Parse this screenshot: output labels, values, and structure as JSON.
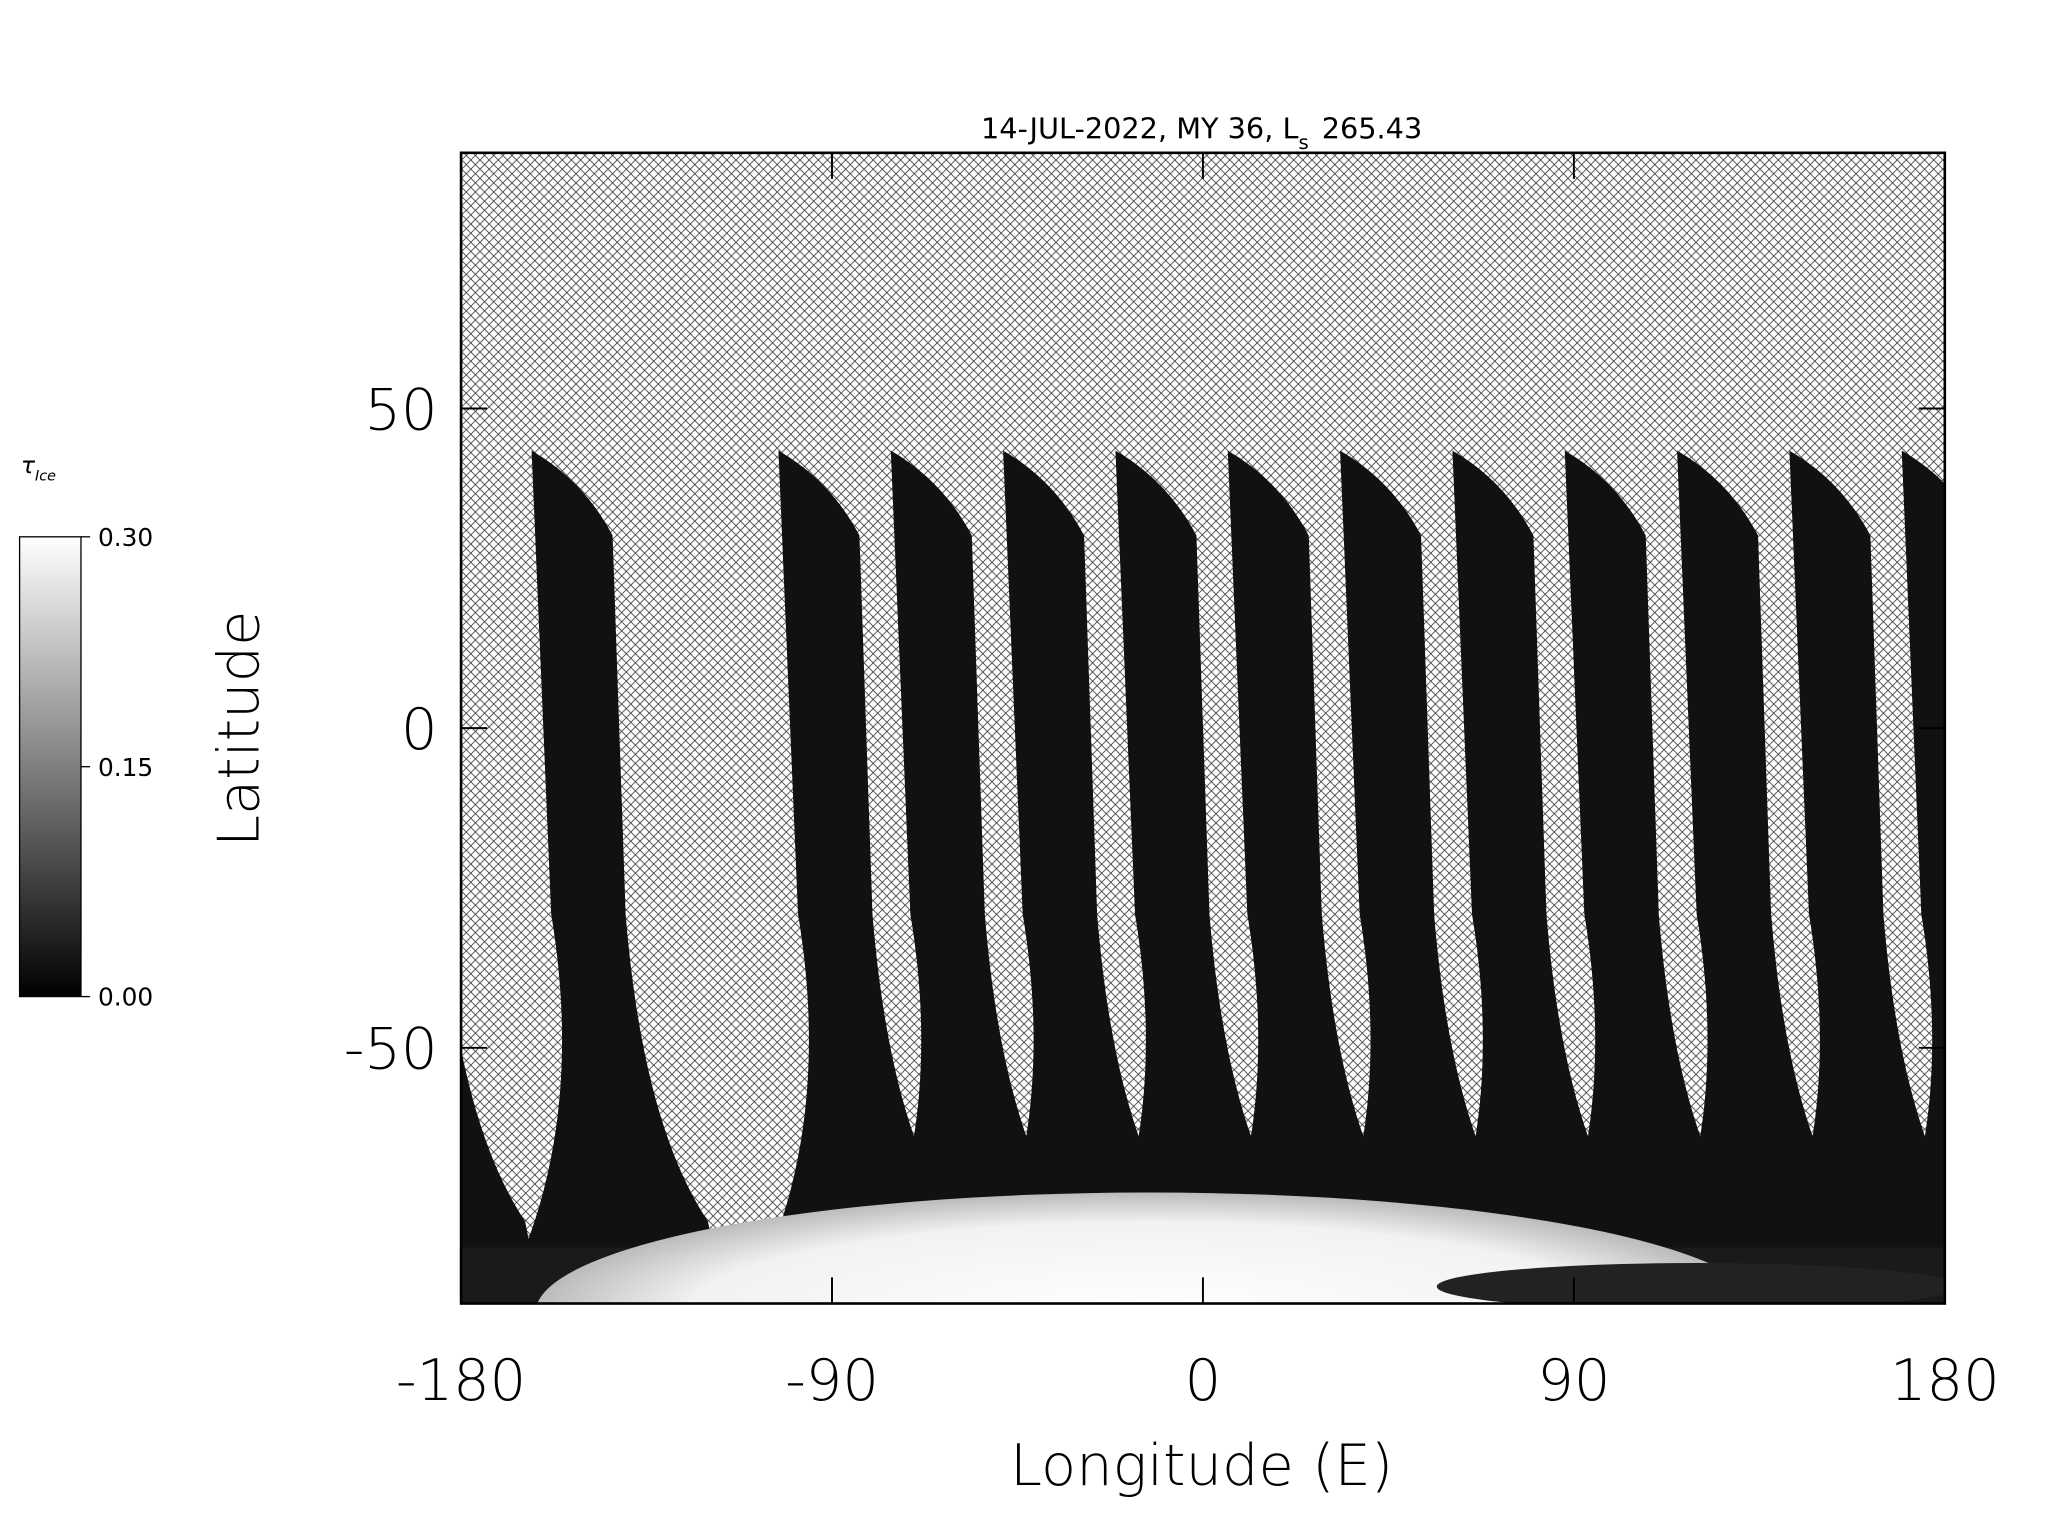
{
  "chart_data": {
    "type": "map",
    "title": "14-JUL-2022, MY 36,  L",
    "title_subscript": "s",
    "title_value": "265.43",
    "x_label": "Longitude (E)",
    "y_label": "Latitude",
    "xlim": [
      -180,
      180
    ],
    "ylim": [
      -90,
      90
    ],
    "xticks": [
      -180,
      -90,
      0,
      90,
      180
    ],
    "yticks": [
      -50,
      0,
      50
    ],
    "colorbar": {
      "label": "τ",
      "label_subscript": "Ice",
      "lim": [
        0,
        0.3
      ],
      "ticks": [
        {
          "value": 0,
          "label": "0.00"
        },
        {
          "value": 0.15,
          "label": "0.15"
        },
        {
          "value": 0.3,
          "label": "0.30"
        }
      ]
    }
  }
}
